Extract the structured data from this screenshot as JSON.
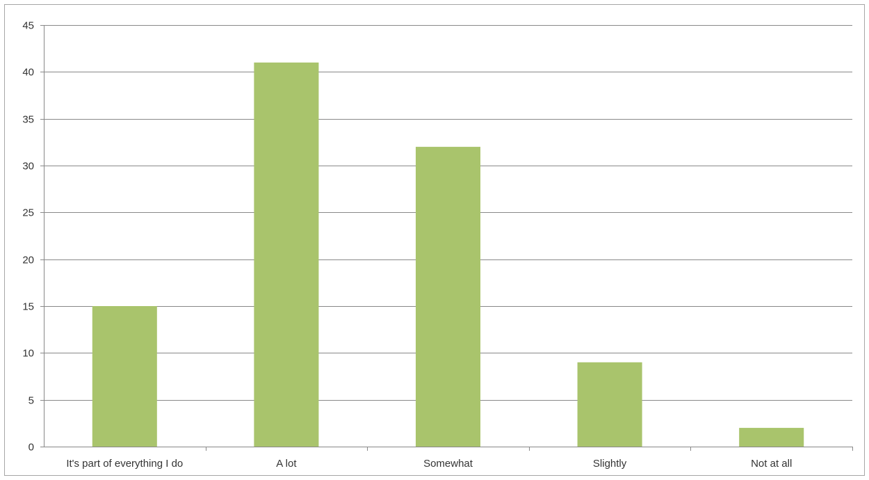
{
  "chart_data": {
    "type": "bar",
    "title": "",
    "xlabel": "",
    "ylabel": "",
    "categories": [
      "It's part of everything I do",
      "A lot",
      "Somewhat",
      "Slightly",
      "Not at all"
    ],
    "values": [
      15,
      41,
      32,
      9,
      2
    ],
    "ylim": [
      0,
      45
    ],
    "ytick_step": 5,
    "yticks": [
      "0",
      "5",
      "10",
      "15",
      "20",
      "25",
      "30",
      "35",
      "40",
      "45"
    ],
    "grid": true,
    "legend": "none",
    "colors": {
      "bar": "#a9c46c",
      "grid": "#888888",
      "axis": "#888888",
      "frame": "#a6a6a6",
      "text": "#333333"
    }
  }
}
